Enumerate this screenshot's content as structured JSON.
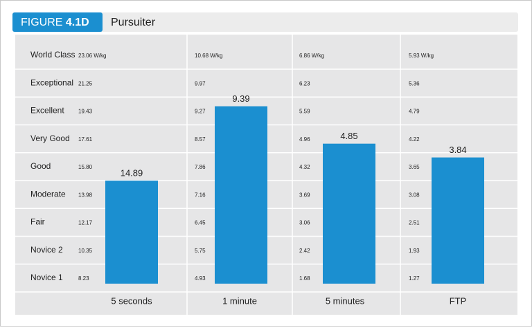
{
  "chart_data": {
    "type": "power-profile",
    "figure_label": "FIGURE",
    "figure_number": "4.1D",
    "title": "Pursuiter",
    "levels": [
      "World Class",
      "Exceptional",
      "Excellent",
      "Very Good",
      "Good",
      "Moderate",
      "Fair",
      "Novice 2",
      "Novice 1"
    ],
    "categories": [
      "5 seconds",
      "1 minute",
      "5 minutes",
      "FTP"
    ],
    "values": [
      14.89,
      9.39,
      4.85,
      3.84
    ],
    "color": "#1b8fd0",
    "scales": [
      [
        {
          "value": 23.06,
          "label": "23.06 W/kg"
        },
        21.25,
        19.43,
        17.61,
        {
          "value": 15.8,
          "label": "15.80"
        },
        13.98,
        12.17,
        10.35,
        8.23
      ],
      [
        {
          "value": 10.68,
          "label": "10.68 W/kg"
        },
        9.97,
        9.27,
        8.57,
        7.86,
        7.16,
        6.45,
        5.75,
        4.93
      ],
      [
        {
          "value": 6.86,
          "label": "6.86 W/kg"
        },
        6.23,
        5.59,
        4.96,
        4.32,
        3.69,
        3.06,
        2.42,
        1.68
      ],
      [
        {
          "value": 5.93,
          "label": "5.93 W/kg"
        },
        5.36,
        4.79,
        4.22,
        3.65,
        3.08,
        2.51,
        1.93,
        1.27
      ]
    ]
  }
}
